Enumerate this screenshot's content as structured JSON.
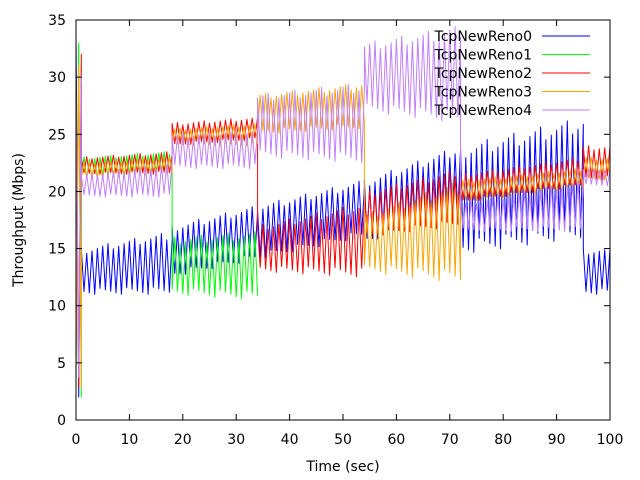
{
  "chart_data": {
    "type": "line",
    "title": "",
    "xlabel": "Time (sec)",
    "ylabel": "Throughput (Mbps)",
    "xlim": [
      0,
      100
    ],
    "ylim": [
      0,
      35
    ],
    "x_ticks": [
      0,
      10,
      20,
      30,
      40,
      50,
      60,
      70,
      80,
      90,
      100
    ],
    "y_ticks": [
      0,
      5,
      10,
      15,
      20,
      25,
      30,
      35
    ],
    "grid": false,
    "legend_position": "top-right",
    "x_sample_step": 0.5,
    "series": [
      {
        "name": "TcpNewReno0",
        "color": "#0000ff",
        "segments": [
          {
            "x_start": 0.0,
            "x_end": 1.0,
            "low": 0.0,
            "high": 33.5
          },
          {
            "x_start": 1.0,
            "x_end": 18.0,
            "low_start": 11.0,
            "low_end": 11.0,
            "high_start": 15.0,
            "high_end": 16.5
          },
          {
            "x_start": 18.0,
            "x_end": 54.0,
            "low_start": 12.5,
            "low_end": 16.0,
            "high_start": 17.0,
            "high_end": 21.0
          },
          {
            "x_start": 54.0,
            "x_end": 72.0,
            "low_start": 15.5,
            "low_end": 18.0,
            "high_start": 21.0,
            "high_end": 24.0
          },
          {
            "x_start": 72.0,
            "x_end": 95.0,
            "low_start": 14.5,
            "low_end": 16.0,
            "high_start": 24.0,
            "high_end": 26.5
          },
          {
            "x_start": 95.0,
            "x_end": 100.0,
            "low": 11.0,
            "high": 15.0
          }
        ]
      },
      {
        "name": "TcpNewReno1",
        "color": "#00ff00",
        "segments": [
          {
            "x_start": 0.0,
            "x_end": 1.0,
            "low": 0.0,
            "high": 33.0
          },
          {
            "x_start": 1.0,
            "x_end": 18.0,
            "low_start": 21.0,
            "low_end": 21.5,
            "high_start": 23.0,
            "high_end": 23.5
          },
          {
            "x_start": 18.0,
            "x_end": 34.0,
            "low_start": 11.0,
            "low_end": 10.5,
            "high_start": 16.0,
            "high_end": 16.5
          }
        ]
      },
      {
        "name": "TcpNewReno2",
        "color": "#ff0000",
        "segments": [
          {
            "x_start": 0.0,
            "x_end": 1.0,
            "low": 0.0,
            "high": 32.0
          },
          {
            "x_start": 1.0,
            "x_end": 18.0,
            "low_start": 21.5,
            "low_end": 21.5,
            "high_start": 23.0,
            "high_end": 23.5
          },
          {
            "x_start": 18.0,
            "x_end": 34.0,
            "low_start": 24.0,
            "low_end": 24.5,
            "high_start": 26.0,
            "high_end": 26.5
          },
          {
            "x_start": 34.0,
            "x_end": 54.0,
            "low_start": 13.0,
            "low_end": 12.5,
            "high_start": 17.0,
            "high_end": 19.0
          },
          {
            "x_start": 54.0,
            "x_end": 72.0,
            "low_start": 16.0,
            "low_end": 17.0,
            "high_start": 20.0,
            "high_end": 22.0
          },
          {
            "x_start": 72.0,
            "x_end": 95.0,
            "low_start": 19.0,
            "low_end": 20.5,
            "high_start": 21.5,
            "high_end": 23.0
          },
          {
            "x_start": 95.0,
            "x_end": 100.0,
            "low": 21.0,
            "high": 24.0
          }
        ]
      },
      {
        "name": "TcpNewReno3",
        "color": "#ffa500",
        "segments": [
          {
            "x_start": 0.0,
            "x_end": 1.0,
            "low": 0.0,
            "high": 32.0
          },
          {
            "x_start": 1.0,
            "x_end": 18.0,
            "low_start": 21.0,
            "low_end": 21.5,
            "high_start": 22.5,
            "high_end": 23.0
          },
          {
            "x_start": 18.0,
            "x_end": 34.0,
            "low_start": 24.0,
            "low_end": 24.0,
            "high_start": 25.5,
            "high_end": 26.0
          },
          {
            "x_start": 34.0,
            "x_end": 54.0,
            "low_start": 25.0,
            "low_end": 25.5,
            "high_start": 28.5,
            "high_end": 29.5
          },
          {
            "x_start": 54.0,
            "x_end": 72.0,
            "low_start": 13.0,
            "low_end": 12.0,
            "high_start": 18.0,
            "high_end": 21.0
          },
          {
            "x_start": 72.0,
            "x_end": 95.0,
            "low_start": 19.0,
            "low_end": 20.0,
            "high_start": 21.0,
            "high_end": 22.0
          },
          {
            "x_start": 95.0,
            "x_end": 100.0,
            "low": 21.0,
            "high": 23.0
          }
        ]
      },
      {
        "name": "TcpNewReno4",
        "color": "#c080ff",
        "segments": [
          {
            "x_start": 0.0,
            "x_end": 1.0,
            "low": 0.0,
            "high": 31.0
          },
          {
            "x_start": 1.0,
            "x_end": 18.0,
            "low_start": 19.5,
            "low_end": 19.5,
            "high_start": 21.5,
            "high_end": 22.5
          },
          {
            "x_start": 18.0,
            "x_end": 34.0,
            "low_start": 22.0,
            "low_end": 22.0,
            "high_start": 25.0,
            "high_end": 25.5
          },
          {
            "x_start": 34.0,
            "x_end": 54.0,
            "low_start": 23.0,
            "low_end": 22.5,
            "high_start": 28.5,
            "high_end": 29.5
          },
          {
            "x_start": 54.0,
            "x_end": 72.0,
            "low_start": 27.0,
            "low_end": 26.0,
            "high_start": 33.0,
            "high_end": 34.5
          },
          {
            "x_start": 72.0,
            "x_end": 95.0,
            "low_start": 16.5,
            "low_end": 16.5,
            "high_start": 19.0,
            "high_end": 21.0
          },
          {
            "x_start": 95.0,
            "x_end": 100.0,
            "low": 20.5,
            "high": 22.0
          }
        ]
      }
    ]
  }
}
